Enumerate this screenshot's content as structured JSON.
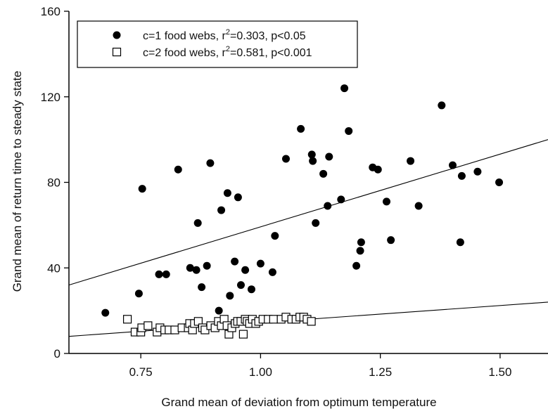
{
  "chart_data": {
    "type": "scatter",
    "title": "",
    "xlabel": "Grand mean of deviation from optimum temperature",
    "ylabel": "Grand mean of return time to steady state",
    "xlim": [
      0.6,
      1.6
    ],
    "ylim": [
      0,
      160
    ],
    "xticks": [
      0.75,
      1.0,
      1.25,
      1.5
    ],
    "xtick_labels": [
      "0.75",
      "1.00",
      "1.25",
      "1.50"
    ],
    "yticks": [
      0,
      40,
      80,
      120,
      160
    ],
    "ytick_labels": [
      "0",
      "40",
      "80",
      "120",
      "160"
    ],
    "grid": false,
    "legend_position": "top-left",
    "series": [
      {
        "name": "c=1 food webs, r²=0.303, p<0.05",
        "label_pre": "c=1 food webs, r",
        "label_sup": "2",
        "label_post": "=0.303, p<0.05",
        "marker": "filled-circle",
        "color": "#000000",
        "points": [
          [
            0.676,
            19
          ],
          [
            0.746,
            28
          ],
          [
            0.753,
            77
          ],
          [
            0.788,
            37
          ],
          [
            0.803,
            37
          ],
          [
            0.828,
            86
          ],
          [
            0.853,
            40
          ],
          [
            0.866,
            39
          ],
          [
            0.869,
            61
          ],
          [
            0.877,
            31
          ],
          [
            0.888,
            41
          ],
          [
            0.895,
            89
          ],
          [
            0.913,
            20
          ],
          [
            0.918,
            67
          ],
          [
            0.931,
            75
          ],
          [
            0.936,
            27
          ],
          [
            0.946,
            43
          ],
          [
            0.953,
            73
          ],
          [
            0.959,
            32
          ],
          [
            0.968,
            39
          ],
          [
            0.981,
            30
          ],
          [
            1.0,
            42
          ],
          [
            1.025,
            38
          ],
          [
            1.03,
            55
          ],
          [
            1.053,
            91
          ],
          [
            1.084,
            105
          ],
          [
            1.107,
            93
          ],
          [
            1.109,
            90
          ],
          [
            1.115,
            61
          ],
          [
            1.131,
            84
          ],
          [
            1.14,
            69
          ],
          [
            1.143,
            92
          ],
          [
            1.168,
            72
          ],
          [
            1.175,
            124
          ],
          [
            1.184,
            104
          ],
          [
            1.2,
            41
          ],
          [
            1.208,
            48
          ],
          [
            1.21,
            52
          ],
          [
            1.234,
            87
          ],
          [
            1.245,
            86
          ],
          [
            1.263,
            71
          ],
          [
            1.272,
            53
          ],
          [
            1.313,
            90
          ],
          [
            1.33,
            69
          ],
          [
            1.378,
            116
          ],
          [
            1.401,
            88
          ],
          [
            1.417,
            52
          ],
          [
            1.42,
            83
          ],
          [
            1.453,
            85
          ],
          [
            1.498,
            80
          ]
        ],
        "fit": {
          "x": [
            0.6,
            1.6
          ],
          "y": [
            32,
            100
          ]
        }
      },
      {
        "name": "c=2 food webs, r²=0.581, p<0.001",
        "label_pre": "c=2 food webs, r",
        "label_sup": "2",
        "label_post": "=0.581, p<0.001",
        "marker": "open-square",
        "color": "#000000",
        "points": [
          [
            0.722,
            16
          ],
          [
            0.738,
            10
          ],
          [
            0.75,
            10
          ],
          [
            0.752,
            12
          ],
          [
            0.765,
            13
          ],
          [
            0.784,
            10
          ],
          [
            0.79,
            12
          ],
          [
            0.8,
            11
          ],
          [
            0.809,
            11
          ],
          [
            0.821,
            11
          ],
          [
            0.836,
            12
          ],
          [
            0.849,
            12
          ],
          [
            0.852,
            14
          ],
          [
            0.858,
            11
          ],
          [
            0.862,
            14
          ],
          [
            0.87,
            15
          ],
          [
            0.879,
            12
          ],
          [
            0.884,
            11
          ],
          [
            0.896,
            13
          ],
          [
            0.905,
            12
          ],
          [
            0.912,
            15
          ],
          [
            0.918,
            13
          ],
          [
            0.924,
            16
          ],
          [
            0.93,
            13
          ],
          [
            0.934,
            9
          ],
          [
            0.94,
            12
          ],
          [
            0.947,
            14
          ],
          [
            0.952,
            15
          ],
          [
            0.959,
            15
          ],
          [
            0.964,
            9
          ],
          [
            0.968,
            16
          ],
          [
            0.972,
            15
          ],
          [
            0.977,
            14
          ],
          [
            0.983,
            16
          ],
          [
            0.99,
            14
          ],
          [
            0.996,
            15
          ],
          [
            1.005,
            16
          ],
          [
            1.016,
            16
          ],
          [
            1.027,
            16
          ],
          [
            1.043,
            16
          ],
          [
            1.053,
            17
          ],
          [
            1.065,
            16
          ],
          [
            1.074,
            16
          ],
          [
            1.082,
            17
          ],
          [
            1.09,
            17
          ],
          [
            1.097,
            16
          ],
          [
            1.106,
            15
          ]
        ],
        "fit": {
          "x": [
            0.6,
            1.6
          ],
          "y": [
            8,
            24
          ]
        }
      }
    ]
  }
}
